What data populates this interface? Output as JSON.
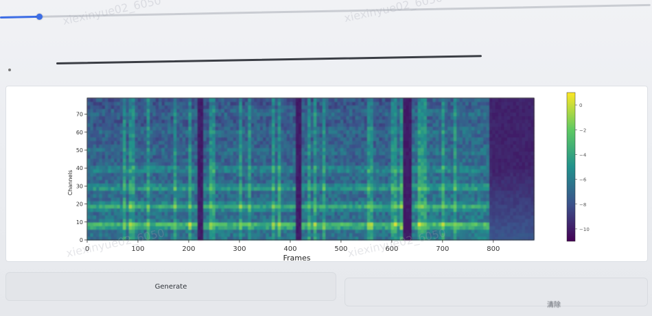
{
  "top_slider": {
    "label": "",
    "fill_fraction": 0.06
  },
  "second_slider": {
    "label": "",
    "value_text": "",
    "fill_fraction": 1.0
  },
  "spectrogram_panel": {
    "label": ""
  },
  "chart_data": {
    "type": "heatmap",
    "title": "",
    "xlabel": "Frames",
    "ylabel": "Channels",
    "xlim": [
      0,
      880
    ],
    "ylim": [
      0,
      79
    ],
    "x_ticks": [
      0,
      100,
      200,
      300,
      400,
      500,
      600,
      700,
      800
    ],
    "y_ticks": [
      0,
      10,
      20,
      30,
      40,
      50,
      60,
      70
    ],
    "colorbar": {
      "range": [
        -11,
        1
      ],
      "ticks": [
        0,
        -2,
        -4,
        -6,
        -8,
        -10
      ],
      "tick_labels": [
        "0",
        "−2",
        "−4",
        "−6",
        "−8",
        "−10"
      ],
      "colormap": "viridis"
    },
    "utterances": [
      {
        "start": 0,
        "end": 215
      },
      {
        "start": 228,
        "end": 410
      },
      {
        "start": 425,
        "end": 620
      },
      {
        "start": 640,
        "end": 790
      }
    ],
    "grid": false
  },
  "buttons": {
    "generate_label": "Generate",
    "clear_label": "清除"
  },
  "watermark_text": "xiexinyue02_6050"
}
